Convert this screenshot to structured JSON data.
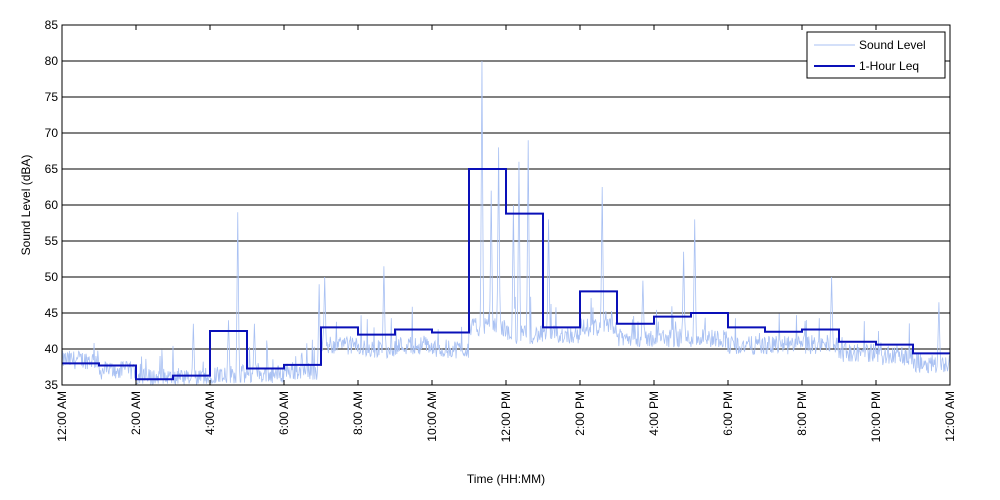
{
  "chart_data": {
    "type": "line",
    "title": "",
    "xlabel": "Time (HH:MM)",
    "ylabel": "Sound Level (dBA)",
    "ylim": [
      35,
      85
    ],
    "xlim": [
      0,
      24
    ],
    "x_unit": "hours since 12:00 AM",
    "y_ticks": [
      35,
      40,
      45,
      50,
      55,
      60,
      65,
      70,
      75,
      80,
      85
    ],
    "x_ticks": [
      {
        "hour": 0,
        "label": "12:00 AM"
      },
      {
        "hour": 2,
        "label": "2:00 AM"
      },
      {
        "hour": 4,
        "label": "4:00 AM"
      },
      {
        "hour": 6,
        "label": "6:00 AM"
      },
      {
        "hour": 8,
        "label": "8:00 AM"
      },
      {
        "hour": 10,
        "label": "10:00 AM"
      },
      {
        "hour": 12,
        "label": "12:00 PM"
      },
      {
        "hour": 14,
        "label": "2:00 PM"
      },
      {
        "hour": 16,
        "label": "4:00 PM"
      },
      {
        "hour": 18,
        "label": "6:00 PM"
      },
      {
        "hour": 20,
        "label": "8:00 PM"
      },
      {
        "hour": 22,
        "label": "10:00 PM"
      },
      {
        "hour": 24,
        "label": "12:00 AM"
      }
    ],
    "grid": "horizontal",
    "legend_position": "top-right",
    "series": [
      {
        "name": "Sound Level",
        "color": "#a9c1f3",
        "style": "thin-line",
        "note": "per-minute values; base level shown by hour with peaks",
        "hourly_base": [
          38.5,
          37,
          36,
          35.8,
          36.5,
          36.5,
          37,
          40.5,
          40,
          40.5,
          40,
          43,
          42,
          42,
          43,
          41.5,
          41.5,
          41.5,
          40.5,
          40.5,
          40.5,
          39.5,
          39,
          38
        ],
        "peaks": [
          {
            "hour": 3.55,
            "value": 43.5
          },
          {
            "hour": 4.5,
            "value": 44
          },
          {
            "hour": 4.75,
            "value": 59
          },
          {
            "hour": 5.2,
            "value": 43.5
          },
          {
            "hour": 6.95,
            "value": 49
          },
          {
            "hour": 7.1,
            "value": 50
          },
          {
            "hour": 8.7,
            "value": 51.5
          },
          {
            "hour": 11.35,
            "value": 80
          },
          {
            "hour": 11.6,
            "value": 62
          },
          {
            "hour": 11.8,
            "value": 68
          },
          {
            "hour": 12.35,
            "value": 66
          },
          {
            "hour": 12.6,
            "value": 69
          },
          {
            "hour": 12.2,
            "value": 60
          },
          {
            "hour": 13.15,
            "value": 58
          },
          {
            "hour": 14.6,
            "value": 62.5
          },
          {
            "hour": 16.8,
            "value": 53.5
          },
          {
            "hour": 17.1,
            "value": 58
          },
          {
            "hour": 15.7,
            "value": 49.5
          },
          {
            "hour": 20.8,
            "value": 50
          },
          {
            "hour": 23.7,
            "value": 46.5
          }
        ]
      },
      {
        "name": "1-Hour Leq",
        "color": "#0a10b8",
        "style": "step",
        "hourly_values": [
          38,
          37.7,
          35.8,
          36.3,
          42.5,
          37.3,
          37.8,
          43,
          42,
          42.7,
          42.3,
          65,
          58.8,
          43,
          48,
          43.5,
          44.5,
          45,
          43,
          42.4,
          42.7,
          41,
          40.6,
          39.4
        ]
      }
    ]
  }
}
